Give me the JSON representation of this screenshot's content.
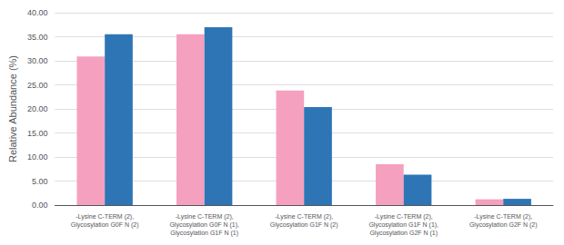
{
  "chart_data": {
    "type": "bar",
    "categories": [
      "-Lysine C-TERM (2),\nGlycosylation G0F N (2)",
      "-Lysine C-TERM (2),\nGlycosylation G0F N (1),\nGlycosylation G1F N (1)",
      "-Lysine C-TERM (2),\nGlycosylation G1F N (2)",
      "-Lysine C-TERM (2),\nGlycosylation G1F N (1),\nGlycosylation G2F N (1)",
      "-Lysine C-TERM (2),\nGlycosylation G2F N (2)"
    ],
    "series": [
      {
        "color": "#F5A0BE",
        "values": [
          30.9,
          35.5,
          23.8,
          8.5,
          1.2
        ]
      },
      {
        "color": "#2E75B6",
        "values": [
          35.5,
          37.0,
          20.4,
          6.3,
          1.3
        ]
      }
    ],
    "ylabel": "Relative Abundance (%)",
    "ylim": [
      0,
      40
    ],
    "yticks": [
      {
        "value": 0,
        "label": "0.00"
      },
      {
        "value": 5,
        "label": "5.00"
      },
      {
        "value": 10,
        "label": "10.00"
      },
      {
        "value": 15,
        "label": "15.00"
      },
      {
        "value": 20,
        "label": "20.00"
      },
      {
        "value": 25,
        "label": "25.00"
      },
      {
        "value": 30,
        "label": "30.00"
      },
      {
        "value": 35,
        "label": "35.00"
      },
      {
        "value": 40,
        "label": "40.00"
      }
    ],
    "grid": true
  }
}
